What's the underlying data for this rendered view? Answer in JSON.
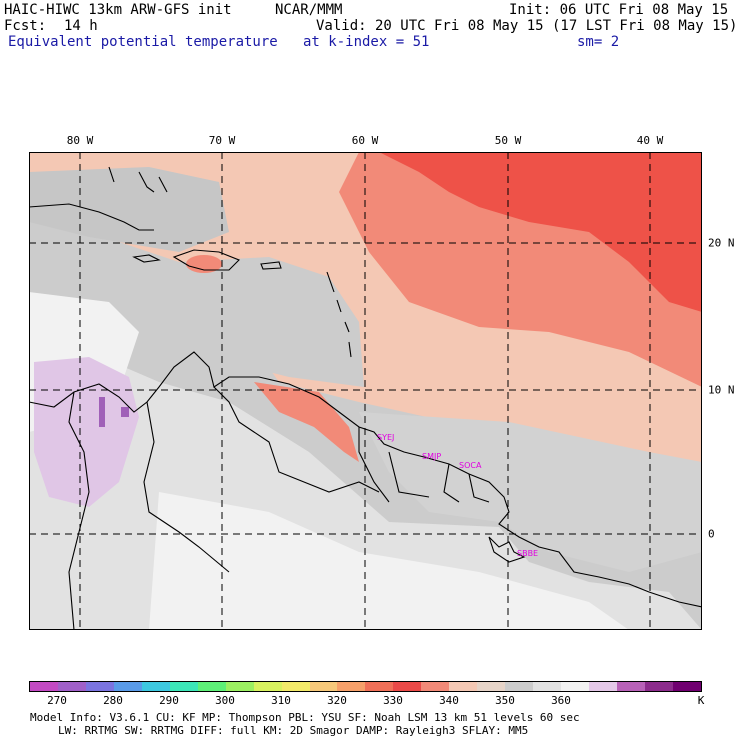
{
  "header": {
    "model": "HAIC-HIWC 13km ARW-GFS init",
    "org": "NCAR/MMM",
    "init": "Init: 06 UTC Fri 08 May 15",
    "fcst_label": "Fcst:",
    "fcst_value": "14 h",
    "valid": "Valid: 20 UTC Fri 08 May 15 (17 LST Fri 08 May 15)",
    "field": "Equivalent potential temperature",
    "level": "at k-index =  51",
    "smooth": "sm= 2"
  },
  "map": {
    "lon_labels": [
      "80 W",
      "70 W",
      "60 W",
      "50 W",
      "40 W"
    ],
    "lat_labels": [
      "20 N",
      "10 N",
      "0"
    ],
    "stations": [
      "SYEJ",
      "SMJP",
      "SOCA",
      "SBBE"
    ]
  },
  "colorbar": {
    "colors": [
      "#c34ac3",
      "#a060c8",
      "#7b74e0",
      "#5a9be8",
      "#3dc8e0",
      "#3ce6b8",
      "#5ef078",
      "#9cf062",
      "#d8f260",
      "#f3ea6a",
      "#f6c87a",
      "#f6a06a",
      "#f07058",
      "#ea4a48",
      "#f28a78",
      "#f4c8b4",
      "#e6d4c8",
      "#cccccc",
      "#e2e2e2",
      "#f2f2f2",
      "#e4c8e8",
      "#b862b8",
      "#8c2c8c",
      "#700070"
    ],
    "ticks": [
      "270",
      "280",
      "290",
      "300",
      "310",
      "320",
      "330",
      "340",
      "350",
      "360"
    ],
    "unit": "K"
  },
  "info": {
    "line1": "Model Info: V3.6.1     CU: KF       MP: Thompson     PBL: YSU       SF: Noah LSM     13 km    51 levels   60 sec",
    "line2": "LW: RRTMG    SW: RRTMG   DIFF: full     KM: 2D Smagor DAMP: Rayleigh3   SFLAY: MM5"
  }
}
